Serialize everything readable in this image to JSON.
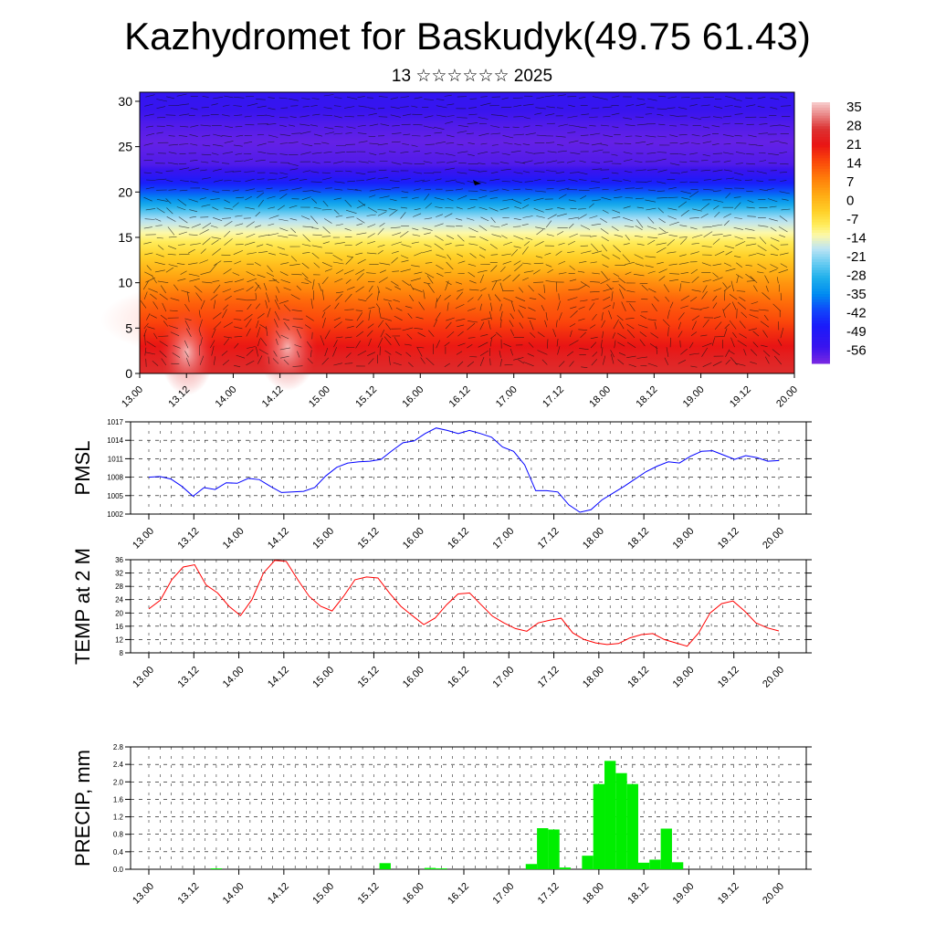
{
  "title": "Kazhydromet for Baskudyk(49.75 61.43)",
  "subtitle": "13 ☆☆☆☆☆☆ 2025",
  "chart_data": [
    {
      "name": "cross-section",
      "type": "heatmap",
      "title": "",
      "xlabel": "",
      "ylabel": "",
      "x_ticks": [
        "13.00",
        "13.12",
        "14.00",
        "14.12",
        "15.00",
        "15.12",
        "16.00",
        "16.12",
        "17.00",
        "17.12",
        "18.00",
        "18.12",
        "19.00",
        "19.12",
        "20.00"
      ],
      "y_ticks": [
        0,
        5,
        10,
        15,
        20,
        25,
        30
      ],
      "ylim": [
        0,
        31
      ],
      "colorbar_labels": [
        "35",
        "28",
        "21",
        "14",
        "7",
        "0",
        "-7",
        "-14",
        "-21",
        "-28",
        "-35",
        "-42",
        "-49",
        "-56"
      ],
      "colorbar_range": [
        -60,
        38
      ],
      "overlay": "wind vectors"
    },
    {
      "name": "pmsl",
      "type": "line",
      "ylabel": "PMSL",
      "ylim": [
        1002,
        1017
      ],
      "y_ticks": [
        1002,
        1005,
        1008,
        1011,
        1014,
        1017
      ],
      "x_ticks": [
        "13.00",
        "13.12",
        "14.00",
        "14.12",
        "15.00",
        "15.12",
        "16.00",
        "16.12",
        "17.00",
        "17.12",
        "18.00",
        "18.12",
        "19.00",
        "19.12",
        "20.00"
      ],
      "grid": true,
      "color": "#0000ff",
      "values": [
        1008.0,
        1008.1,
        1007.7,
        1006.5,
        1004.9,
        1006.3,
        1006.0,
        1007.1,
        1007.0,
        1007.8,
        1007.6,
        1006.5,
        1005.5,
        1005.6,
        1005.7,
        1006.3,
        1008.2,
        1009.6,
        1010.3,
        1010.5,
        1010.6,
        1010.9,
        1012.3,
        1013.6,
        1013.9,
        1015.1,
        1016.0,
        1015.6,
        1015.1,
        1015.6,
        1015.1,
        1014.5,
        1012.9,
        1012.2,
        1010.0,
        1005.8,
        1005.8,
        1005.6,
        1003.5,
        1002.3,
        1002.7,
        1004.3,
        1005.4,
        1006.5,
        1007.7,
        1008.9,
        1009.8,
        1010.5,
        1010.3,
        1011.4,
        1012.2,
        1012.3,
        1011.6,
        1010.9,
        1011.5,
        1011.2,
        1010.6,
        1010.7
      ]
    },
    {
      "name": "temp-2m",
      "type": "line",
      "ylabel": "TEMP at 2 M",
      "ylim": [
        8,
        36
      ],
      "y_ticks": [
        8,
        12,
        16,
        20,
        24,
        28,
        32,
        36
      ],
      "x_ticks": [
        "13.00",
        "13.12",
        "14.00",
        "14.12",
        "15.00",
        "15.12",
        "16.00",
        "16.12",
        "17.00",
        "17.12",
        "18.00",
        "18.12",
        "19.00",
        "19.12",
        "20.00"
      ],
      "grid": true,
      "color": "#ff0000",
      "values": [
        21.2,
        23.8,
        30.0,
        33.8,
        34.5,
        28.4,
        26.0,
        22.0,
        19.2,
        24.0,
        32.0,
        35.8,
        35.5,
        30.0,
        25.0,
        22.0,
        20.6,
        25.0,
        30.0,
        30.8,
        30.5,
        26.0,
        22.0,
        19.2,
        16.5,
        18.5,
        22.5,
        25.7,
        26.0,
        22.5,
        19.0,
        17.0,
        15.3,
        14.5,
        17.0,
        17.8,
        18.4,
        14.0,
        12.0,
        11.0,
        10.5,
        10.8,
        12.5,
        13.5,
        13.8,
        12.0,
        11.0,
        10.0,
        14.0,
        20.0,
        22.8,
        23.6,
        20.6,
        17.0,
        15.5,
        14.6
      ]
    },
    {
      "name": "precip",
      "type": "bar",
      "ylabel": "PRECIP, mm",
      "ylim": [
        0,
        2.8
      ],
      "y_ticks": [
        "0.0",
        "0.4",
        "0.8",
        "1.2",
        "1.6",
        "2.0",
        "2.4",
        "2.8"
      ],
      "x_ticks": [
        "13.00",
        "13.12",
        "14.00",
        "14.12",
        "15.00",
        "15.12",
        "16.00",
        "16.12",
        "17.00",
        "17.12",
        "18.00",
        "18.12",
        "19.00",
        "19.12",
        "20.00"
      ],
      "grid": true,
      "color": "#00ee00",
      "values": [
        0,
        0,
        0,
        0,
        0,
        0,
        0.02,
        0,
        0,
        0,
        0,
        0,
        0,
        0,
        0,
        0,
        0,
        0,
        0,
        0,
        0,
        0.14,
        0,
        0,
        0,
        0.03,
        0.02,
        0,
        0,
        0,
        0,
        0,
        0,
        0,
        0.12,
        0.94,
        0.91,
        0.04,
        0,
        0.31,
        1.95,
        2.48,
        2.2,
        1.95,
        0.15,
        0.22,
        0.93,
        0.16,
        0,
        0,
        0,
        0,
        0,
        0,
        0,
        0,
        0
      ]
    }
  ]
}
